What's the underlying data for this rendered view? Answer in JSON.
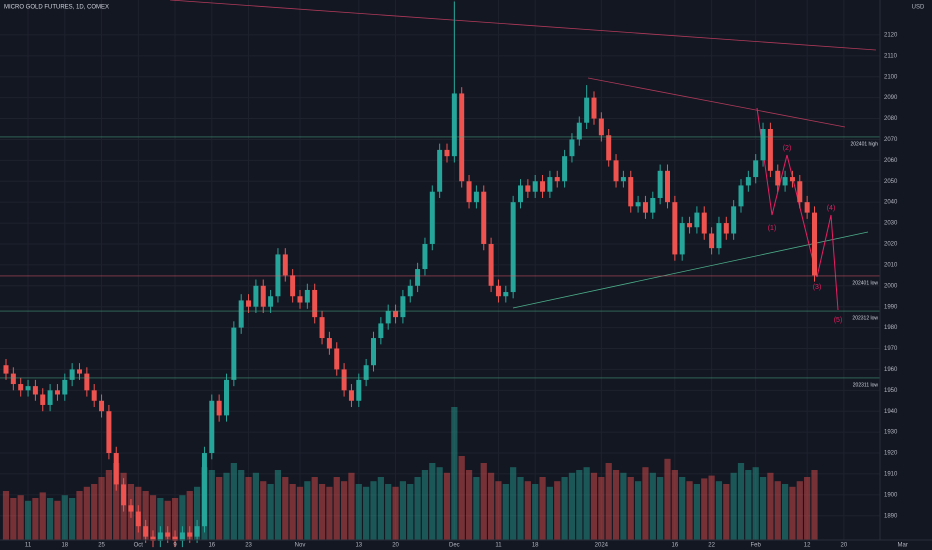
{
  "chart_data": {
    "type": "candlestick",
    "title": "MICRO GOLD FUTURES, 1D, COMEX",
    "currency": "USD",
    "up_color": "#26a69a",
    "down_color": "#ef5350",
    "categories": [
      null,
      null,
      null,
      "11",
      null,
      null,
      null,
      null,
      "18",
      null,
      null,
      null,
      null,
      "25",
      null,
      null,
      null,
      null,
      "Oct",
      null,
      null,
      null,
      null,
      "9",
      null,
      null,
      null,
      null,
      "16",
      null,
      null,
      null,
      null,
      "23",
      null,
      null,
      null,
      null,
      null,
      null,
      "Nov",
      null,
      null,
      null,
      null,
      null,
      null,
      null,
      "13",
      null,
      null,
      null,
      null,
      "20",
      null,
      null,
      null,
      null,
      null,
      null,
      null,
      "Dec",
      null,
      null,
      null,
      null,
      null,
      "11",
      null,
      null,
      null,
      null,
      "18",
      null,
      null,
      null,
      null,
      null,
      null,
      null,
      null,
      "2024",
      null,
      null,
      null,
      null,
      null,
      null,
      null,
      null,
      null,
      "16",
      null,
      null,
      null,
      null,
      "22",
      null,
      null,
      null,
      null,
      null,
      "Feb",
      null,
      null,
      null,
      null,
      null,
      null,
      "12",
      null,
      null,
      null,
      null,
      "20",
      null,
      null,
      null,
      null,
      null,
      null,
      null,
      "Mar"
    ],
    "open": [
      1962,
      1958,
      1953,
      1950,
      1952,
      1948,
      1943,
      1950,
      1948,
      1955,
      1960,
      1958,
      1950,
      1945,
      1940,
      1920,
      1905,
      1895,
      1892,
      1885,
      1880,
      1878,
      1882,
      1880,
      1878,
      1882,
      1880,
      1885,
      1920,
      1945,
      1938,
      1955,
      1980,
      1993,
      1990,
      2000,
      1990,
      1995,
      2015,
      2005,
      1995,
      1992,
      1998,
      1985,
      1975,
      1970,
      1960,
      1950,
      1945,
      1955,
      1962,
      1975,
      1982,
      1988,
      1985,
      1995,
      2000,
      2008,
      2020,
      2045,
      2065,
      2062,
      2092,
      2050,
      2040,
      2045,
      2020,
      2000,
      1995,
      1997,
      2040,
      2048,
      2045,
      2050,
      2045,
      2052,
      2050,
      2062,
      2070,
      2078,
      2090,
      2080,
      2072,
      2060,
      2050,
      2052,
      2038,
      2040,
      2035,
      2042,
      2055,
      2040,
      2015,
      2030,
      2028,
      2035,
      2025,
      2018,
      2030,
      2025,
      2038,
      2048,
      2052,
      2060,
      2075,
      2055,
      2048,
      2052,
      2050,
      2040,
      2035,
      null,
      null,
      null,
      null,
      null,
      null,
      null,
      null,
      null,
      null,
      null,
      null
    ],
    "high": [
      1965,
      1961,
      1956,
      1955,
      1955,
      1951,
      1953,
      1953,
      1958,
      1963,
      1963,
      1961,
      1953,
      1948,
      1943,
      1923,
      1908,
      1898,
      1895,
      1888,
      1883,
      1885,
      1885,
      1883,
      1885,
      1885,
      1888,
      1923,
      1948,
      1948,
      1958,
      1983,
      1996,
      1996,
      2003,
      2003,
      1998,
      2018,
      2018,
      2008,
      1998,
      2001,
      2001,
      1988,
      1978,
      1973,
      1963,
      1953,
      1958,
      1965,
      1978,
      1985,
      1991,
      1991,
      1998,
      2003,
      2011,
      2023,
      2048,
      2068,
      2068,
      2136,
      2095,
      2053,
      2048,
      2048,
      2023,
      2003,
      2000,
      2043,
      2051,
      2051,
      2053,
      2053,
      2055,
      2055,
      2065,
      2073,
      2081,
      2096,
      2093,
      2083,
      2075,
      2063,
      2055,
      2055,
      2043,
      2043,
      2045,
      2058,
      2058,
      2043,
      2033,
      2033,
      2038,
      2038,
      2028,
      2033,
      2033,
      2041,
      2051,
      2055,
      2063,
      2078,
      2078,
      2058,
      2055,
      2055,
      2053,
      2043,
      2038,
      null,
      null,
      null,
      null,
      null,
      null,
      null,
      null,
      null,
      null,
      null,
      null
    ],
    "low": [
      1955,
      1950,
      1947,
      1947,
      1945,
      1940,
      1940,
      1945,
      1945,
      1952,
      1955,
      1947,
      1942,
      1937,
      1917,
      1902,
      1892,
      1889,
      1882,
      1877,
      1875,
      1875,
      1877,
      1875,
      1875,
      1877,
      1877,
      1882,
      1917,
      1935,
      1935,
      1952,
      1977,
      1987,
      1987,
      1987,
      1987,
      1992,
      2002,
      1992,
      1989,
      1989,
      1982,
      1972,
      1967,
      1957,
      1947,
      1942,
      1942,
      1952,
      1959,
      1972,
      1979,
      1982,
      1982,
      1992,
      1997,
      2005,
      2017,
      2042,
      2059,
      2059,
      2047,
      2037,
      2037,
      2017,
      1997,
      1992,
      1992,
      1994,
      2037,
      2042,
      2042,
      2042,
      2042,
      2047,
      2047,
      2059,
      2067,
      2075,
      2077,
      2069,
      2057,
      2047,
      2047,
      2035,
      2035,
      2032,
      2032,
      2039,
      2037,
      2012,
      2012,
      2025,
      2025,
      2022,
      2015,
      2015,
      2022,
      2022,
      2035,
      2045,
      2049,
      2057,
      2052,
      2045,
      2045,
      2047,
      2037,
      2032,
      2002,
      null,
      null,
      null,
      null,
      null,
      null,
      null,
      null,
      null,
      null,
      null,
      null
    ],
    "close": [
      1958,
      1953,
      1950,
      1952,
      1948,
      1943,
      1950,
      1948,
      1955,
      1960,
      1958,
      1950,
      1945,
      1940,
      1920,
      1905,
      1895,
      1892,
      1885,
      1880,
      1878,
      1882,
      1880,
      1878,
      1882,
      1880,
      1885,
      1920,
      1945,
      1938,
      1955,
      1980,
      1993,
      1990,
      2000,
      1990,
      1995,
      2015,
      2005,
      1995,
      1992,
      1998,
      1985,
      1975,
      1970,
      1960,
      1950,
      1945,
      1955,
      1962,
      1975,
      1982,
      1988,
      1985,
      1995,
      2000,
      2008,
      2020,
      2045,
      2065,
      2062,
      2092,
      2050,
      2040,
      2045,
      2020,
      2000,
      1995,
      1997,
      2040,
      2048,
      2045,
      2050,
      2045,
      2052,
      2050,
      2062,
      2070,
      2078,
      2090,
      2080,
      2072,
      2060,
      2050,
      2052,
      2038,
      2040,
      2035,
      2042,
      2055,
      2040,
      2015,
      2030,
      2028,
      2035,
      2025,
      2018,
      2030,
      2025,
      2038,
      2048,
      2052,
      2060,
      2075,
      2055,
      2048,
      2052,
      2050,
      2040,
      2035,
      2005,
      null,
      null,
      null,
      null,
      null,
      null,
      null,
      null,
      null,
      null,
      null,
      null
    ],
    "volume": [
      35,
      30,
      32,
      28,
      30,
      34,
      30,
      28,
      32,
      30,
      35,
      38,
      40,
      45,
      50,
      55,
      48,
      40,
      38,
      35,
      32,
      30,
      28,
      30,
      32,
      35,
      38,
      52,
      50,
      45,
      48,
      55,
      50,
      45,
      48,
      42,
      40,
      50,
      45,
      40,
      38,
      42,
      45,
      40,
      38,
      45,
      42,
      48,
      40,
      38,
      42,
      45,
      40,
      38,
      42,
      40,
      45,
      50,
      55,
      52,
      48,
      95,
      60,
      50,
      45,
      55,
      48,
      42,
      40,
      52,
      45,
      42,
      40,
      45,
      38,
      42,
      45,
      48,
      50,
      52,
      48,
      45,
      55,
      50,
      48,
      45,
      42,
      52,
      48,
      45,
      58,
      50,
      45,
      42,
      40,
      44,
      46,
      42,
      40,
      48,
      55,
      50,
      52,
      45,
      48,
      42,
      40,
      38,
      42,
      45,
      50,
      null,
      null,
      null,
      null,
      null,
      null,
      null,
      null,
      null,
      null,
      null,
      null
    ],
    "vlim": [
      0,
      100
    ],
    "ylim": [
      1878.4,
      2136.7
    ],
    "yticks": [
      1890,
      1900,
      1910,
      1920,
      1930,
      1940,
      1950,
      1960,
      1970,
      1980,
      1990,
      2000,
      2010,
      2020,
      2030,
      2040,
      2050,
      2060,
      2070,
      2080,
      2090,
      2100,
      2110,
      2120
    ],
    "grid": true,
    "levels": [
      {
        "name": "202401 high",
        "value": 2071.2,
        "color": "#4caf8a"
      },
      {
        "name": "202401 low",
        "value": 2004.7,
        "color": "#e05a6a"
      },
      {
        "name": "202312 low",
        "value": 1987.9,
        "color": "#4caf8a"
      },
      {
        "name": "202311 low",
        "value": 1955.9,
        "color": "#4caf8a"
      }
    ],
    "annotations": [
      "(1)",
      "(2)",
      "(3)",
      "(4)",
      "(5)"
    ]
  }
}
